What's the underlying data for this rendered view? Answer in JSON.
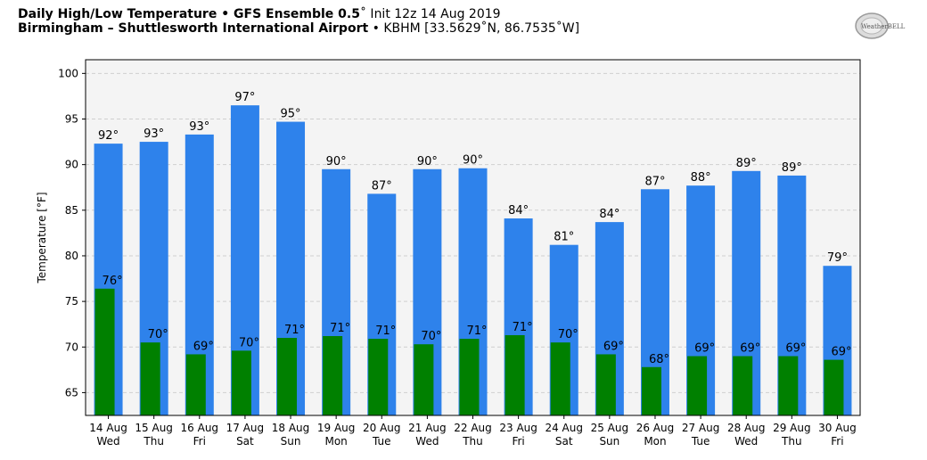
{
  "header": {
    "line1_bold": "Daily High/Low Temperature • GFS Ensemble 0.5",
    "line1_rest": "˚ Init 12z 14 Aug 2019",
    "line2_bold": "Birmingham – Shuttlesworth International Airport",
    "line2_rest": " • KBHM [33.5629˚N, 86.7535˚W]"
  },
  "logo": {
    "text": "WeatherBELL"
  },
  "colors": {
    "high": "#2e82eb",
    "low": "#008000",
    "plot_bg": "#f4f4f4"
  },
  "chart_data": {
    "type": "bar",
    "title": "Daily High/Low Temperature • GFS Ensemble 0.5˚ Init 12z 14 Aug 2019",
    "ylabel": "Temperature [°F]",
    "xlabel": "",
    "ylim": [
      62.5,
      101.5
    ],
    "yticks": [
      65,
      70,
      75,
      80,
      85,
      90,
      95,
      100
    ],
    "grid": true,
    "categories": [
      [
        "14 Aug",
        "Wed"
      ],
      [
        "15 Aug",
        "Thu"
      ],
      [
        "16 Aug",
        "Fri"
      ],
      [
        "17 Aug",
        "Sat"
      ],
      [
        "18 Aug",
        "Sun"
      ],
      [
        "19 Aug",
        "Mon"
      ],
      [
        "20 Aug",
        "Tue"
      ],
      [
        "21 Aug",
        "Wed"
      ],
      [
        "22 Aug",
        "Thu"
      ],
      [
        "23 Aug",
        "Fri"
      ],
      [
        "24 Aug",
        "Sat"
      ],
      [
        "25 Aug",
        "Sun"
      ],
      [
        "26 Aug",
        "Mon"
      ],
      [
        "27 Aug",
        "Tue"
      ],
      [
        "28 Aug",
        "Wed"
      ],
      [
        "29 Aug",
        "Thu"
      ],
      [
        "30 Aug",
        "Fri"
      ]
    ],
    "series": [
      {
        "key": "high",
        "values": [
          92.3,
          92.5,
          93.3,
          96.5,
          94.7,
          89.5,
          86.8,
          89.5,
          89.6,
          84.1,
          81.2,
          83.7,
          87.3,
          87.7,
          89.3,
          88.8,
          78.9
        ],
        "labels": [
          "92°",
          "93°",
          "93°",
          "97°",
          "95°",
          "90°",
          "87°",
          "90°",
          "90°",
          "84°",
          "81°",
          "84°",
          "87°",
          "88°",
          "89°",
          "89°",
          "79°"
        ]
      },
      {
        "key": "low",
        "values": [
          76.4,
          70.5,
          69.2,
          69.6,
          71.0,
          71.2,
          70.9,
          70.3,
          70.9,
          71.3,
          70.5,
          69.2,
          67.8,
          69.0,
          69.0,
          69.0,
          68.6
        ],
        "labels": [
          "76°",
          "70°",
          "69°",
          "70°",
          "71°",
          "71°",
          "71°",
          "70°",
          "71°",
          "71°",
          "70°",
          "69°",
          "68°",
          "69°",
          "69°",
          "69°",
          "69°"
        ]
      }
    ]
  }
}
